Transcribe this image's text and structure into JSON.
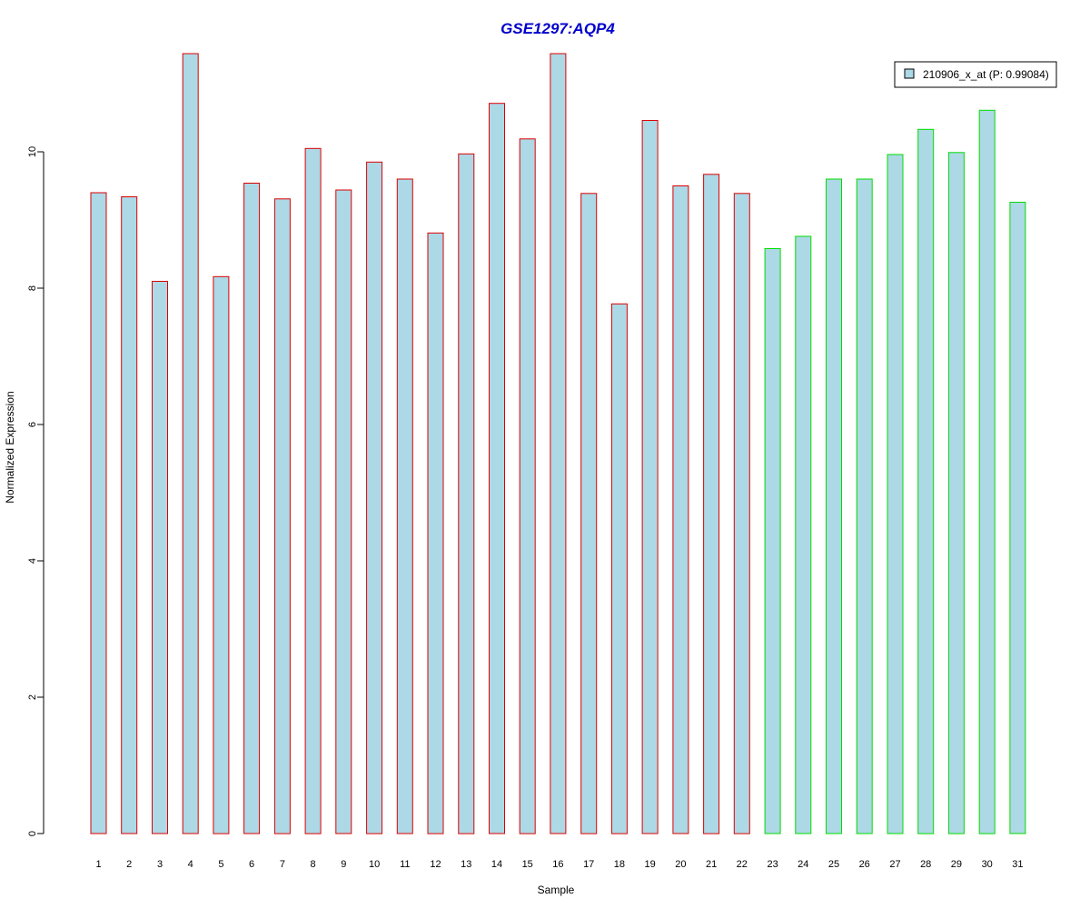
{
  "chart_data": {
    "type": "bar",
    "title": "GSE1297:AQP4",
    "xlabel": "Sample",
    "ylabel": "Normalized Expression",
    "categories": [
      "1",
      "2",
      "3",
      "4",
      "5",
      "6",
      "7",
      "8",
      "9",
      "10",
      "11",
      "12",
      "13",
      "14",
      "15",
      "16",
      "17",
      "18",
      "19",
      "20",
      "21",
      "22",
      "23",
      "24",
      "25",
      "26",
      "27",
      "28",
      "29",
      "30",
      "31"
    ],
    "series": [
      {
        "name": "210906_x_at (P: 0.99084)",
        "values": [
          9.4,
          9.34,
          8.1,
          11.44,
          8.17,
          9.54,
          9.31,
          10.05,
          9.44,
          9.85,
          9.6,
          8.81,
          9.97,
          10.71,
          10.19,
          11.44,
          9.39,
          7.77,
          10.46,
          9.5,
          9.67,
          9.39,
          8.58,
          8.76,
          9.6,
          9.6,
          9.96,
          10.33,
          9.99,
          10.61,
          9.26
        ],
        "groups": [
          "red",
          "red",
          "red",
          "red",
          "red",
          "red",
          "red",
          "red",
          "red",
          "red",
          "red",
          "red",
          "red",
          "red",
          "red",
          "red",
          "red",
          "red",
          "red",
          "red",
          "red",
          "red",
          "green",
          "green",
          "green",
          "green",
          "green",
          "green",
          "green",
          "green",
          "green"
        ]
      }
    ],
    "ylim": [
      0,
      11.5
    ],
    "yticks": [
      0,
      2,
      4,
      6,
      8,
      10
    ],
    "grid": false,
    "legend_position": "top-right",
    "colors": {
      "title": "#0000cc",
      "bar_fill": "#add8e6",
      "border_red": "#dd0000",
      "border_green": "#00dd00",
      "axis": "#000000"
    }
  }
}
